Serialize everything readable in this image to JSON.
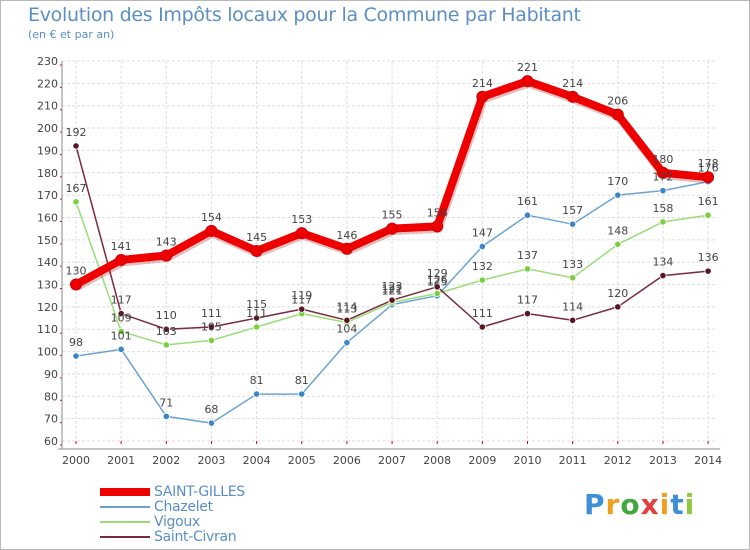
{
  "header": {
    "title": "Evolution des Impôts locaux pour la Commune par Habitant",
    "subtitle": "(en € et par an)"
  },
  "logo": {
    "text": "Proxiti",
    "letters": [
      "P",
      "r",
      "o",
      "x",
      "i",
      "t",
      "i"
    ],
    "colors": [
      "#3f8fd6",
      "#f0a020",
      "#3fa83f",
      "#e04040",
      "#f0a020",
      "#3f8fd6",
      "#8fc83f"
    ]
  },
  "chart_data": {
    "type": "line",
    "title": "Evolution des Impôts locaux pour la Commune par Habitant",
    "subtitle": "(en € et par an)",
    "xlabel": "",
    "ylabel": "",
    "ylim": [
      60,
      230
    ],
    "ytick_step": 10,
    "grid": true,
    "legend_position": "bottom-left",
    "categories": [
      "2000",
      "2001",
      "2002",
      "2003",
      "2004",
      "2005",
      "2006",
      "2007",
      "2008",
      "2009",
      "2010",
      "2011",
      "2012",
      "2013",
      "2014"
    ],
    "series": [
      {
        "name": "SAINT-GILLES",
        "color": "#ee0000",
        "marker": "#ee0000",
        "bold": true,
        "values": [
          130,
          141,
          143,
          154,
          145,
          153,
          146,
          155,
          156,
          214,
          221,
          214,
          206,
          180,
          178
        ]
      },
      {
        "name": "Chazelet",
        "color": "#6aa3d2",
        "marker": "#3a86c8",
        "bold": false,
        "values": [
          98,
          101,
          71,
          68,
          81,
          81,
          104,
          121,
          125,
          147,
          161,
          157,
          170,
          172,
          176
        ]
      },
      {
        "name": "Vigoux",
        "color": "#99dd77",
        "marker": "#7ad040",
        "bold": false,
        "values": [
          167,
          109,
          103,
          105,
          111,
          117,
          113,
          122,
          126,
          132,
          137,
          133,
          148,
          158,
          161
        ]
      },
      {
        "name": "Saint-Civran",
        "color": "#7a2a3a",
        "marker": "#5a1522",
        "bold": false,
        "values": [
          192,
          117,
          110,
          111,
          115,
          119,
          114,
          123,
          129,
          111,
          117,
          114,
          120,
          134,
          136
        ]
      }
    ]
  }
}
